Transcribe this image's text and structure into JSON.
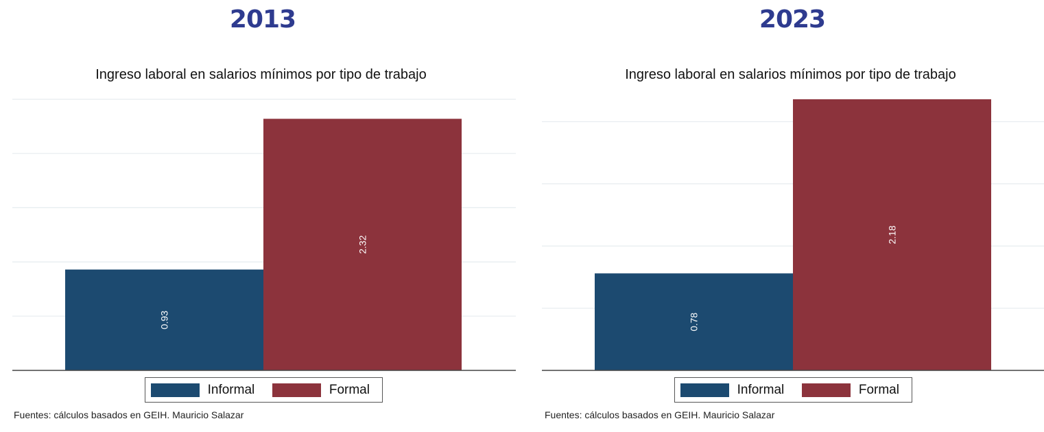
{
  "panels": [
    {
      "year_label": "2013",
      "chart_data": {
        "type": "bar",
        "title": "Ingreso laboral en salarios mínimos por tipo de trabajo",
        "categories": [
          "Informal",
          "Formal"
        ],
        "values": [
          0.93,
          2.32
        ],
        "value_labels": [
          "0.93",
          "2.32"
        ],
        "colors": [
          "#1c4a70",
          "#8c333c"
        ],
        "ylim": [
          0,
          2.5
        ],
        "grid": true,
        "legend": [
          "Informal",
          "Formal"
        ],
        "legend_position": "bottom"
      },
      "source": "Fuentes: cálculos basados en GEIH. Mauricio Salazar"
    },
    {
      "year_label": "2023",
      "chart_data": {
        "type": "bar",
        "title": "Ingreso laboral en salarios mínimos por tipo de trabajo",
        "categories": [
          "Informal",
          "Formal"
        ],
        "values": [
          0.78,
          2.18
        ],
        "value_labels": [
          "0.78",
          "2.18"
        ],
        "colors": [
          "#1c4a70",
          "#8c333c"
        ],
        "ylim": [
          0,
          2.18
        ],
        "grid": true,
        "legend": [
          "Informal",
          "Formal"
        ],
        "legend_position": "bottom"
      },
      "source": "Fuentes: cálculos basados en GEIH. Mauricio Salazar"
    }
  ]
}
